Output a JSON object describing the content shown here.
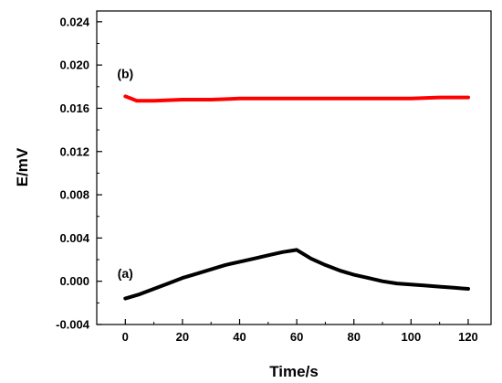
{
  "chart_data": {
    "type": "line",
    "title": "",
    "xlabel": "Time/s",
    "ylabel": "E/mV",
    "xlim": [
      -10,
      128
    ],
    "ylim": [
      -0.004,
      0.025
    ],
    "xticks": [
      0,
      20,
      40,
      60,
      80,
      100,
      120
    ],
    "xtick_labels": [
      "0",
      "20",
      "40",
      "60",
      "80",
      "100",
      "120"
    ],
    "yticks": [
      -0.004,
      0.0,
      0.004,
      0.008,
      0.012,
      0.016,
      0.02,
      0.024
    ],
    "ytick_labels": [
      "-0.004",
      "0.000",
      "0.004",
      "0.008",
      "0.012",
      "0.016",
      "0.020",
      "0.024"
    ],
    "grid": false,
    "legend": "none",
    "series": [
      {
        "name": "(a)",
        "color": "#000000",
        "x": [
          0,
          5,
          10,
          15,
          20,
          25,
          30,
          35,
          40,
          45,
          50,
          55,
          60,
          65,
          70,
          75,
          80,
          85,
          90,
          95,
          100,
          105,
          110,
          115,
          120
        ],
        "y": [
          -0.0016,
          -0.0012,
          -0.0007,
          -0.0002,
          0.0003,
          0.0007,
          0.0011,
          0.0015,
          0.0018,
          0.0021,
          0.0024,
          0.0027,
          0.0029,
          0.0021,
          0.0015,
          0.001,
          0.0006,
          0.0003,
          0.0,
          -0.0002,
          -0.0003,
          -0.0004,
          -0.0005,
          -0.0006,
          -0.0007
        ]
      },
      {
        "name": "(b)",
        "color": "#ff0000",
        "x": [
          0,
          2,
          4,
          10,
          20,
          30,
          40,
          50,
          60,
          70,
          80,
          90,
          100,
          110,
          120
        ],
        "y": [
          0.0171,
          0.0169,
          0.0167,
          0.0167,
          0.0168,
          0.0168,
          0.0169,
          0.0169,
          0.0169,
          0.0169,
          0.0169,
          0.0169,
          0.0169,
          0.017,
          0.017
        ]
      }
    ],
    "annotations": [
      {
        "text": "(a)",
        "x": 0,
        "y": 0.0003
      },
      {
        "text": "(b)",
        "x": 0,
        "y": 0.0188
      }
    ]
  }
}
